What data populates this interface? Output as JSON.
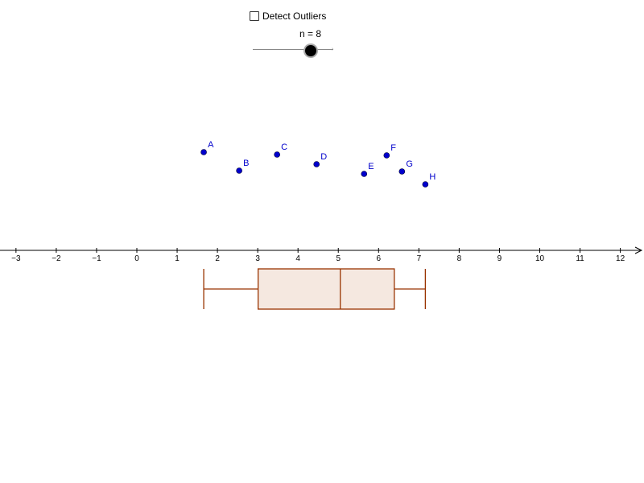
{
  "controls": {
    "checkbox_label": "Detect Outliers",
    "checkbox_checked": false,
    "slider_label": "n = 8",
    "slider_value": 8
  },
  "colors": {
    "points": "#0000cc",
    "box_stroke": "#993300",
    "box_fill": "#f5e8e0",
    "axis": "#000000"
  },
  "chart_data": {
    "type": "scatter",
    "x_ticks": [
      "−3",
      "−2",
      "−1",
      "0",
      "1",
      "2",
      "3",
      "4",
      "5",
      "6",
      "7",
      "8",
      "9",
      "10",
      "11",
      "12"
    ],
    "x_tick_values": [
      -3,
      -2,
      -1,
      0,
      1,
      2,
      3,
      4,
      5,
      6,
      7,
      8,
      9,
      10,
      11,
      12
    ],
    "xlim": [
      -3.3,
      12.6
    ],
    "points": [
      {
        "label": "A",
        "x": 1.66
      },
      {
        "label": "B",
        "x": 2.54
      },
      {
        "label": "C",
        "x": 3.48
      },
      {
        "label": "D",
        "x": 4.46
      },
      {
        "label": "E",
        "x": 5.64
      },
      {
        "label": "F",
        "x": 6.2
      },
      {
        "label": "G",
        "x": 6.58
      },
      {
        "label": "H",
        "x": 7.16
      }
    ],
    "boxplot": {
      "min": 1.66,
      "q1": 3.01,
      "median": 5.05,
      "q3": 6.39,
      "max": 7.16
    }
  }
}
